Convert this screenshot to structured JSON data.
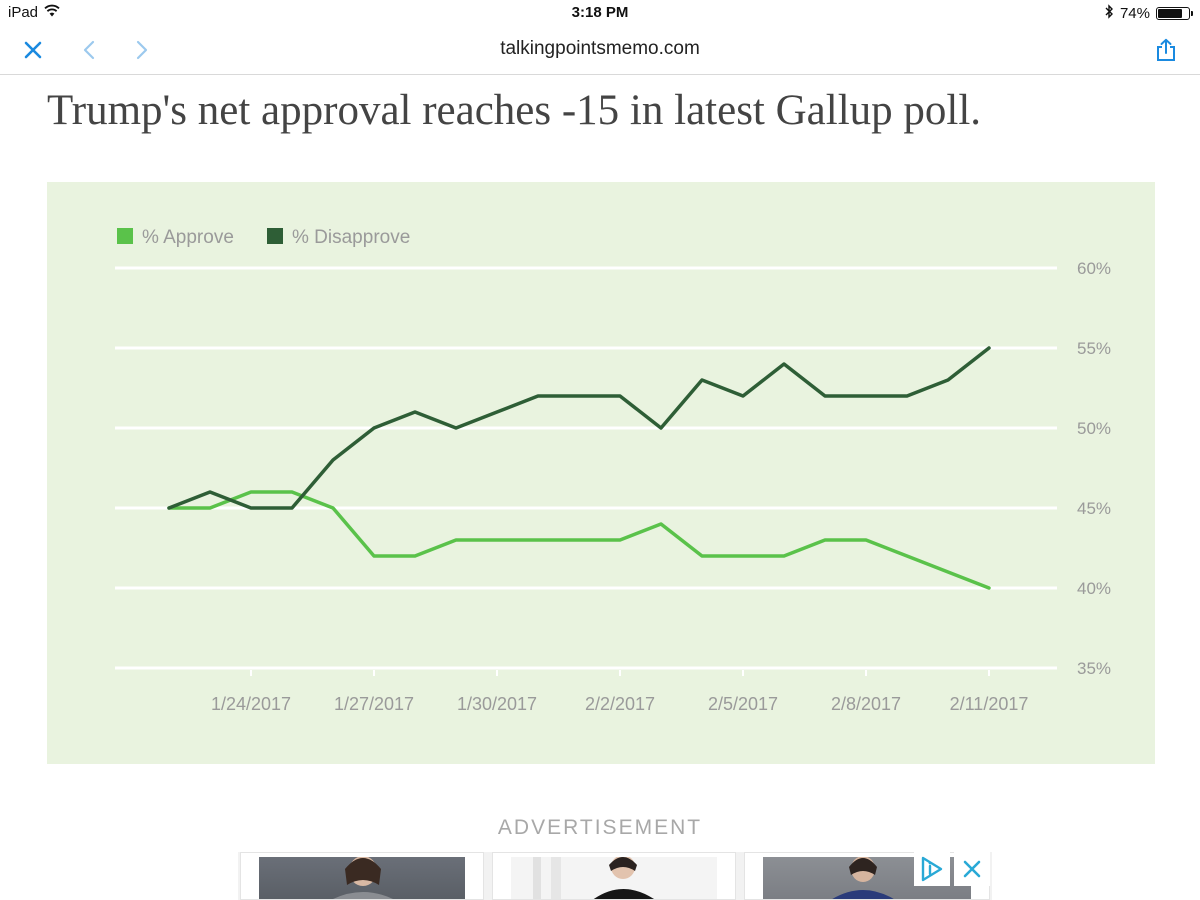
{
  "status_bar": {
    "device": "iPad",
    "time": "3:18 PM",
    "battery": "74%",
    "battery_level": 0.74
  },
  "browser": {
    "url": "talkingpointsmemo.com",
    "icons": [
      "close-icon",
      "back-icon",
      "forward-icon",
      "share-icon"
    ]
  },
  "article": {
    "headline": "Trump's net approval reaches -15 in latest Gallup poll."
  },
  "chart_data": {
    "type": "line",
    "title": "",
    "xlabel": "",
    "ylabel": "",
    "ylim": [
      35,
      60
    ],
    "y_ticks": [
      "35%",
      "40%",
      "45%",
      "50%",
      "55%",
      "60%"
    ],
    "x_tick_labels": [
      "1/24/2017",
      "1/27/2017",
      "1/30/2017",
      "2/2/2017",
      "2/5/2017",
      "2/8/2017",
      "2/11/2017"
    ],
    "x": [
      "1/22/2017",
      "1/23/2017",
      "1/24/2017",
      "1/25/2017",
      "1/26/2017",
      "1/27/2017",
      "1/28/2017",
      "1/29/2017",
      "1/30/2017",
      "1/31/2017",
      "2/1/2017",
      "2/2/2017",
      "2/3/2017",
      "2/4/2017",
      "2/5/2017",
      "2/6/2017",
      "2/7/2017",
      "2/8/2017",
      "2/9/2017",
      "2/10/2017",
      "2/11/2017"
    ],
    "legend_position": "top-left",
    "grid": true,
    "series": [
      {
        "name": "% Approve",
        "color": "#5ac24a",
        "values": [
          45,
          45,
          46,
          46,
          45,
          42,
          42,
          43,
          43,
          43,
          43,
          43,
          44,
          42,
          42,
          42,
          43,
          43,
          42,
          41,
          40
        ]
      },
      {
        "name": "% Disapprove",
        "color": "#2e5e36",
        "values": [
          45,
          46,
          45,
          45,
          48,
          50,
          51,
          50,
          51,
          52,
          52,
          52,
          50,
          53,
          52,
          54,
          52,
          52,
          52,
          53,
          55
        ]
      }
    ]
  },
  "advertisement": {
    "label": "ADVERTISEMENT",
    "icons": [
      "adchoices-icon",
      "ad-close-icon"
    ]
  }
}
